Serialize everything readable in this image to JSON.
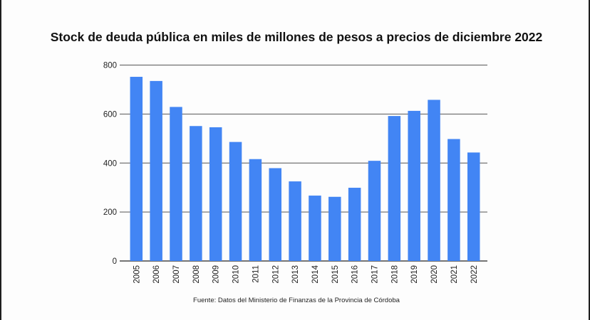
{
  "chart_data": {
    "type": "bar",
    "title": "Stock de deuda pública en miles de millones de pesos a precios de diciembre 2022",
    "xlabel": "",
    "ylabel": "",
    "categories": [
      "2005",
      "2006",
      "2007",
      "2008",
      "2009",
      "2010",
      "2011",
      "2012",
      "2013",
      "2014",
      "2015",
      "2016",
      "2017",
      "2018",
      "2019",
      "2020",
      "2021",
      "2022"
    ],
    "values": [
      752,
      735,
      629,
      551,
      546,
      486,
      416,
      379,
      325,
      267,
      262,
      299,
      409,
      592,
      613,
      658,
      498,
      443
    ],
    "ylim": [
      0,
      800
    ],
    "yticks": [
      0,
      200,
      400,
      600,
      800
    ],
    "ytick_labels": [
      "0",
      "200",
      "400",
      "600",
      "800"
    ],
    "grid": true,
    "legend": "none",
    "bar_color": "#4285f4",
    "source": "Fuente: Datos del Ministerio de Finanzas de la Provincia de Córdoba"
  }
}
